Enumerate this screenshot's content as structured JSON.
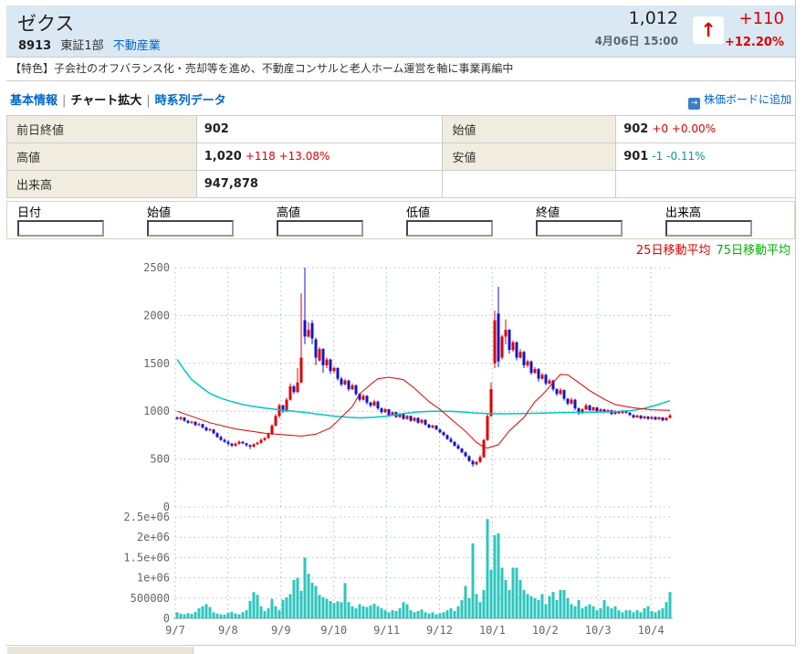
{
  "header": {
    "title": "ゼクス",
    "code": "8913",
    "market": "東証1部",
    "sector": "不動産業",
    "price": "1,012",
    "datetime": "4月06日 15:00",
    "up_arrow": "↑",
    "change": "+110",
    "change_pct": "+12.20%",
    "up_color": "#dd0000"
  },
  "feature_line": "【特色】子会社のオフバランス化・売却等を進め、不動産コンサルと老人ホーム運営を軸に事業再編中",
  "nav": {
    "links": [
      {
        "label": "基本情報",
        "active": false
      },
      {
        "label": "チャート拡大",
        "active": true
      },
      {
        "label": "時系列データ",
        "active": false
      }
    ],
    "separator": "|",
    "add_icon": "→",
    "add_to_board": "株価ボードに追加"
  },
  "summary_table": {
    "rows": [
      [
        {
          "label": "前日終値",
          "value": "902",
          "change": "",
          "change_color": ""
        },
        {
          "label": "始値",
          "value": "902",
          "change": "+0 +0.00%",
          "change_color": "#dd0000"
        }
      ],
      [
        {
          "label": "高値",
          "value": "1,020",
          "change": "+118 +13.08%",
          "change_color": "#dd0000"
        },
        {
          "label": "安値",
          "value": "901",
          "change": "-1 -0.11%",
          "change_color": "#009e96"
        }
      ],
      [
        {
          "label": "出来高",
          "value": "947,878",
          "change": "",
          "change_color": ""
        },
        {
          "label": "",
          "value": "",
          "change": "",
          "change_color": ""
        }
      ]
    ]
  },
  "form": {
    "fields": [
      "日付",
      "始値",
      "高値",
      "低値",
      "終値",
      "出来高"
    ]
  },
  "legend": [
    {
      "label": "25日移動平均",
      "color": "#e00000"
    },
    {
      "label": "75日移動平均",
      "color": "#00b000"
    }
  ],
  "chart_data": {
    "type": "candlestick+volume",
    "x_ticks": [
      "9/7",
      "9/8",
      "9/9",
      "9/10",
      "9/11",
      "9/12",
      "10/1",
      "10/2",
      "10/3",
      "10/4"
    ],
    "price_axis": {
      "min": 0,
      "max": 2500,
      "tick_labels": [
        "0",
        "500",
        "1000",
        "1500",
        "2000",
        "2500"
      ]
    },
    "volume_axis": {
      "min": 0,
      "max": 2500000,
      "tick_labels": [
        "0",
        "500000",
        "1e+06",
        "1.5e+06",
        "2e+06",
        "2.5e+06"
      ]
    },
    "colors": {
      "up": "#dd0000",
      "down": "#1414cc",
      "ma25": "#dd0000",
      "ma75": "#00c6c6",
      "volume": "#2cc6bd",
      "grid": "#b0bcd0",
      "axis_text": "#666666"
    },
    "candles": [
      [
        935,
        945,
        910,
        920
      ],
      [
        920,
        950,
        905,
        935
      ],
      [
        935,
        940,
        890,
        900
      ],
      [
        900,
        910,
        870,
        880
      ],
      [
        880,
        900,
        870,
        890
      ],
      [
        890,
        895,
        845,
        855
      ],
      [
        855,
        880,
        845,
        865
      ],
      [
        865,
        870,
        820,
        830
      ],
      [
        830,
        840,
        790,
        800
      ],
      [
        800,
        825,
        790,
        810
      ],
      [
        810,
        815,
        760,
        770
      ],
      [
        770,
        780,
        720,
        730
      ],
      [
        730,
        745,
        690,
        700
      ],
      [
        700,
        715,
        670,
        680
      ],
      [
        680,
        700,
        640,
        660
      ],
      [
        660,
        670,
        625,
        640
      ],
      [
        640,
        675,
        630,
        660
      ],
      [
        660,
        695,
        650,
        680
      ],
      [
        680,
        690,
        655,
        665
      ],
      [
        665,
        670,
        630,
        645
      ],
      [
        645,
        655,
        605,
        630
      ],
      [
        630,
        665,
        620,
        655
      ],
      [
        655,
        685,
        645,
        670
      ],
      [
        670,
        715,
        660,
        700
      ],
      [
        700,
        730,
        690,
        720
      ],
      [
        720,
        775,
        710,
        760
      ],
      [
        760,
        865,
        750,
        850
      ],
      [
        850,
        970,
        840,
        950
      ],
      [
        950,
        1080,
        930,
        1060
      ],
      [
        1060,
        1070,
        980,
        1000
      ],
      [
        1000,
        1140,
        990,
        1120
      ],
      [
        1120,
        1290,
        1110,
        1260
      ],
      [
        1260,
        1275,
        1180,
        1200
      ],
      [
        1200,
        1450,
        1190,
        1300
      ],
      [
        1300,
        2230,
        1290,
        1560
      ],
      [
        1950,
        2500,
        1700,
        1780
      ],
      [
        1780,
        1930,
        1770,
        1850
      ],
      [
        1920,
        1950,
        1700,
        1760
      ],
      [
        1750,
        1770,
        1480,
        1560
      ],
      [
        1530,
        1670,
        1520,
        1650
      ],
      [
        1650,
        1660,
        1400,
        1480
      ],
      [
        1480,
        1560,
        1450,
        1540
      ],
      [
        1540,
        1550,
        1390,
        1420
      ],
      [
        1420,
        1470,
        1400,
        1450
      ],
      [
        1450,
        1460,
        1320,
        1340
      ],
      [
        1340,
        1360,
        1260,
        1280
      ],
      [
        1280,
        1340,
        1270,
        1320
      ],
      [
        1320,
        1330,
        1210,
        1230
      ],
      [
        1230,
        1290,
        1220,
        1270
      ],
      [
        1270,
        1280,
        1160,
        1180
      ],
      [
        1180,
        1190,
        1100,
        1120
      ],
      [
        1120,
        1180,
        1110,
        1160
      ],
      [
        1160,
        1170,
        1070,
        1090
      ],
      [
        1090,
        1100,
        1040,
        1060
      ],
      [
        1060,
        1120,
        1050,
        1100
      ],
      [
        1100,
        1110,
        1010,
        1030
      ],
      [
        1030,
        1040,
        975,
        990
      ],
      [
        990,
        1035,
        980,
        1020
      ],
      [
        1020,
        1025,
        945,
        960
      ],
      [
        960,
        1000,
        950,
        990
      ],
      [
        990,
        995,
        930,
        940
      ],
      [
        940,
        980,
        930,
        970
      ],
      [
        970,
        975,
        910,
        920
      ],
      [
        920,
        960,
        910,
        950
      ],
      [
        950,
        955,
        890,
        900
      ],
      [
        900,
        940,
        890,
        930
      ],
      [
        930,
        935,
        870,
        880
      ],
      [
        880,
        920,
        870,
        910
      ],
      [
        910,
        915,
        850,
        860
      ],
      [
        860,
        870,
        820,
        830
      ],
      [
        830,
        860,
        820,
        850
      ],
      [
        850,
        855,
        800,
        810
      ],
      [
        810,
        815,
        770,
        780
      ],
      [
        780,
        790,
        740,
        750
      ],
      [
        750,
        760,
        700,
        710
      ],
      [
        710,
        730,
        670,
        680
      ],
      [
        680,
        690,
        630,
        640
      ],
      [
        640,
        660,
        600,
        610
      ],
      [
        610,
        615,
        560,
        570
      ],
      [
        570,
        580,
        520,
        530
      ],
      [
        530,
        540,
        470,
        480
      ],
      [
        480,
        490,
        420,
        445
      ],
      [
        445,
        480,
        435,
        470
      ],
      [
        470,
        540,
        460,
        520
      ],
      [
        520,
        710,
        510,
        700
      ],
      [
        700,
        970,
        690,
        950
      ],
      [
        950,
        1300,
        940,
        1230
      ],
      [
        1500,
        2050,
        1450,
        1950
      ],
      [
        2020,
        2300,
        1460,
        1520
      ],
      [
        1560,
        1800,
        1540,
        1780
      ],
      [
        1780,
        1960,
        1700,
        1850
      ],
      [
        1850,
        1860,
        1600,
        1640
      ],
      [
        1640,
        1740,
        1620,
        1720
      ],
      [
        1720,
        1730,
        1530,
        1560
      ],
      [
        1560,
        1650,
        1550,
        1620
      ],
      [
        1620,
        1630,
        1450,
        1480
      ],
      [
        1480,
        1540,
        1460,
        1520
      ],
      [
        1520,
        1530,
        1380,
        1400
      ],
      [
        1400,
        1460,
        1390,
        1440
      ],
      [
        1440,
        1450,
        1310,
        1340
      ],
      [
        1340,
        1400,
        1330,
        1380
      ],
      [
        1380,
        1390,
        1270,
        1290
      ],
      [
        1290,
        1340,
        1280,
        1320
      ],
      [
        1320,
        1330,
        1210,
        1230
      ],
      [
        1230,
        1240,
        1160,
        1180
      ],
      [
        1180,
        1240,
        1170,
        1220
      ],
      [
        1220,
        1230,
        1110,
        1130
      ],
      [
        1130,
        1140,
        1060,
        1080
      ],
      [
        1080,
        1140,
        1070,
        1120
      ],
      [
        1120,
        1130,
        1010,
        1030
      ],
      [
        1030,
        1040,
        960,
        980
      ],
      [
        980,
        1030,
        970,
        1020
      ],
      [
        1020,
        1080,
        1010,
        1060
      ],
      [
        1060,
        1070,
        1000,
        1010
      ],
      [
        1010,
        1050,
        1000,
        1040
      ],
      [
        1040,
        1045,
        985,
        1000
      ],
      [
        1000,
        1030,
        990,
        1020
      ],
      [
        1020,
        1025,
        980,
        990
      ],
      [
        990,
        1020,
        985,
        1010
      ],
      [
        1010,
        1015,
        960,
        970
      ],
      [
        970,
        1010,
        965,
        1000
      ],
      [
        1000,
        1005,
        970,
        980
      ],
      [
        980,
        1015,
        975,
        1005
      ],
      [
        1005,
        1010,
        975,
        985
      ],
      [
        985,
        990,
        950,
        960
      ],
      [
        960,
        970,
        925,
        935
      ],
      [
        935,
        965,
        930,
        955
      ],
      [
        955,
        960,
        915,
        925
      ],
      [
        925,
        955,
        920,
        945
      ],
      [
        945,
        950,
        910,
        920
      ],
      [
        920,
        950,
        915,
        940
      ],
      [
        940,
        945,
        905,
        915
      ],
      [
        915,
        945,
        910,
        935
      ],
      [
        935,
        940,
        895,
        905
      ],
      [
        905,
        940,
        900,
        930
      ],
      [
        930,
        975,
        925,
        955
      ]
    ],
    "volumes": [
      150000,
      120000,
      100000,
      130000,
      110000,
      160000,
      250000,
      300000,
      350000,
      280000,
      150000,
      120000,
      100000,
      90000,
      140000,
      160000,
      120000,
      100000,
      150000,
      200000,
      430000,
      650000,
      580000,
      300000,
      180000,
      250000,
      480000,
      300000,
      200000,
      460000,
      520000,
      600000,
      950000,
      1000000,
      680000,
      1500000,
      1100000,
      880000,
      800000,
      580000,
      520000,
      480000,
      430000,
      380000,
      420000,
      400000,
      870000,
      400000,
      300000,
      250000,
      350000,
      300000,
      280000,
      320000,
      360000,
      300000,
      250000,
      200000,
      150000,
      200000,
      180000,
      250000,
      400000,
      350000,
      200000,
      150000,
      180000,
      220000,
      150000,
      120000,
      150000,
      100000,
      130000,
      150000,
      200000,
      250000,
      180000,
      300000,
      450000,
      800000,
      500000,
      1850000,
      600000,
      400000,
      700000,
      2450000,
      1200000,
      2050000,
      2100000,
      1250000,
      950000,
      700000,
      1250000,
      1250000,
      950000,
      700000,
      600000,
      550000,
      500000,
      450000,
      600000,
      350000,
      550000,
      650000,
      450000,
      700000,
      700000,
      500000,
      350000,
      300000,
      450000,
      250000,
      300000,
      350000,
      300000,
      200000,
      250000,
      450000,
      300000,
      250000,
      300000,
      200000,
      150000,
      200000,
      200000,
      150000,
      200000,
      150000,
      250000,
      300000,
      180000,
      150000,
      200000,
      250000,
      400000,
      650000
    ],
    "ma25": [
      [
        0,
        1000
      ],
      [
        9,
        880
      ],
      [
        16,
        815
      ],
      [
        24,
        770
      ],
      [
        29,
        755
      ],
      [
        34,
        740
      ],
      [
        38,
        760
      ],
      [
        42,
        825
      ],
      [
        44,
        900
      ],
      [
        48,
        1050
      ],
      [
        50,
        1180
      ],
      [
        53,
        1280
      ],
      [
        55,
        1340
      ],
      [
        58,
        1355
      ],
      [
        62,
        1330
      ],
      [
        65,
        1240
      ],
      [
        69,
        1100
      ],
      [
        72,
        1020
      ],
      [
        75,
        920
      ],
      [
        79,
        790
      ],
      [
        82,
        675
      ],
      [
        84,
        625
      ],
      [
        85,
        615
      ],
      [
        88,
        650
      ],
      [
        91,
        795
      ],
      [
        95,
        935
      ],
      [
        98,
        1100
      ],
      [
        100,
        1170
      ],
      [
        103,
        1300
      ],
      [
        105,
        1385
      ],
      [
        107,
        1380
      ],
      [
        110,
        1300
      ],
      [
        113,
        1215
      ],
      [
        117,
        1125
      ],
      [
        120,
        1070
      ],
      [
        125,
        1035
      ],
      [
        130,
        1015
      ],
      [
        135,
        1010
      ]
    ],
    "ma75": [
      [
        0,
        1540
      ],
      [
        2,
        1430
      ],
      [
        4,
        1330
      ],
      [
        7,
        1240
      ],
      [
        9,
        1185
      ],
      [
        12,
        1135
      ],
      [
        15,
        1100
      ],
      [
        18,
        1070
      ],
      [
        21,
        1050
      ],
      [
        24,
        1032
      ],
      [
        28,
        1015
      ],
      [
        32,
        1000
      ],
      [
        35,
        988
      ],
      [
        39,
        968
      ],
      [
        43,
        948
      ],
      [
        47,
        936
      ],
      [
        50,
        930
      ],
      [
        54,
        936
      ],
      [
        58,
        950
      ],
      [
        62,
        975
      ],
      [
        66,
        992
      ],
      [
        70,
        1000
      ],
      [
        75,
        998
      ],
      [
        79,
        990
      ],
      [
        82,
        980
      ],
      [
        85,
        975
      ],
      [
        90,
        973
      ],
      [
        95,
        975
      ],
      [
        100,
        980
      ],
      [
        105,
        985
      ],
      [
        110,
        988
      ],
      [
        115,
        990
      ],
      [
        120,
        995
      ],
      [
        124,
        1005
      ],
      [
        128,
        1030
      ],
      [
        131,
        1060
      ],
      [
        133,
        1085
      ],
      [
        135,
        1110
      ]
    ]
  }
}
